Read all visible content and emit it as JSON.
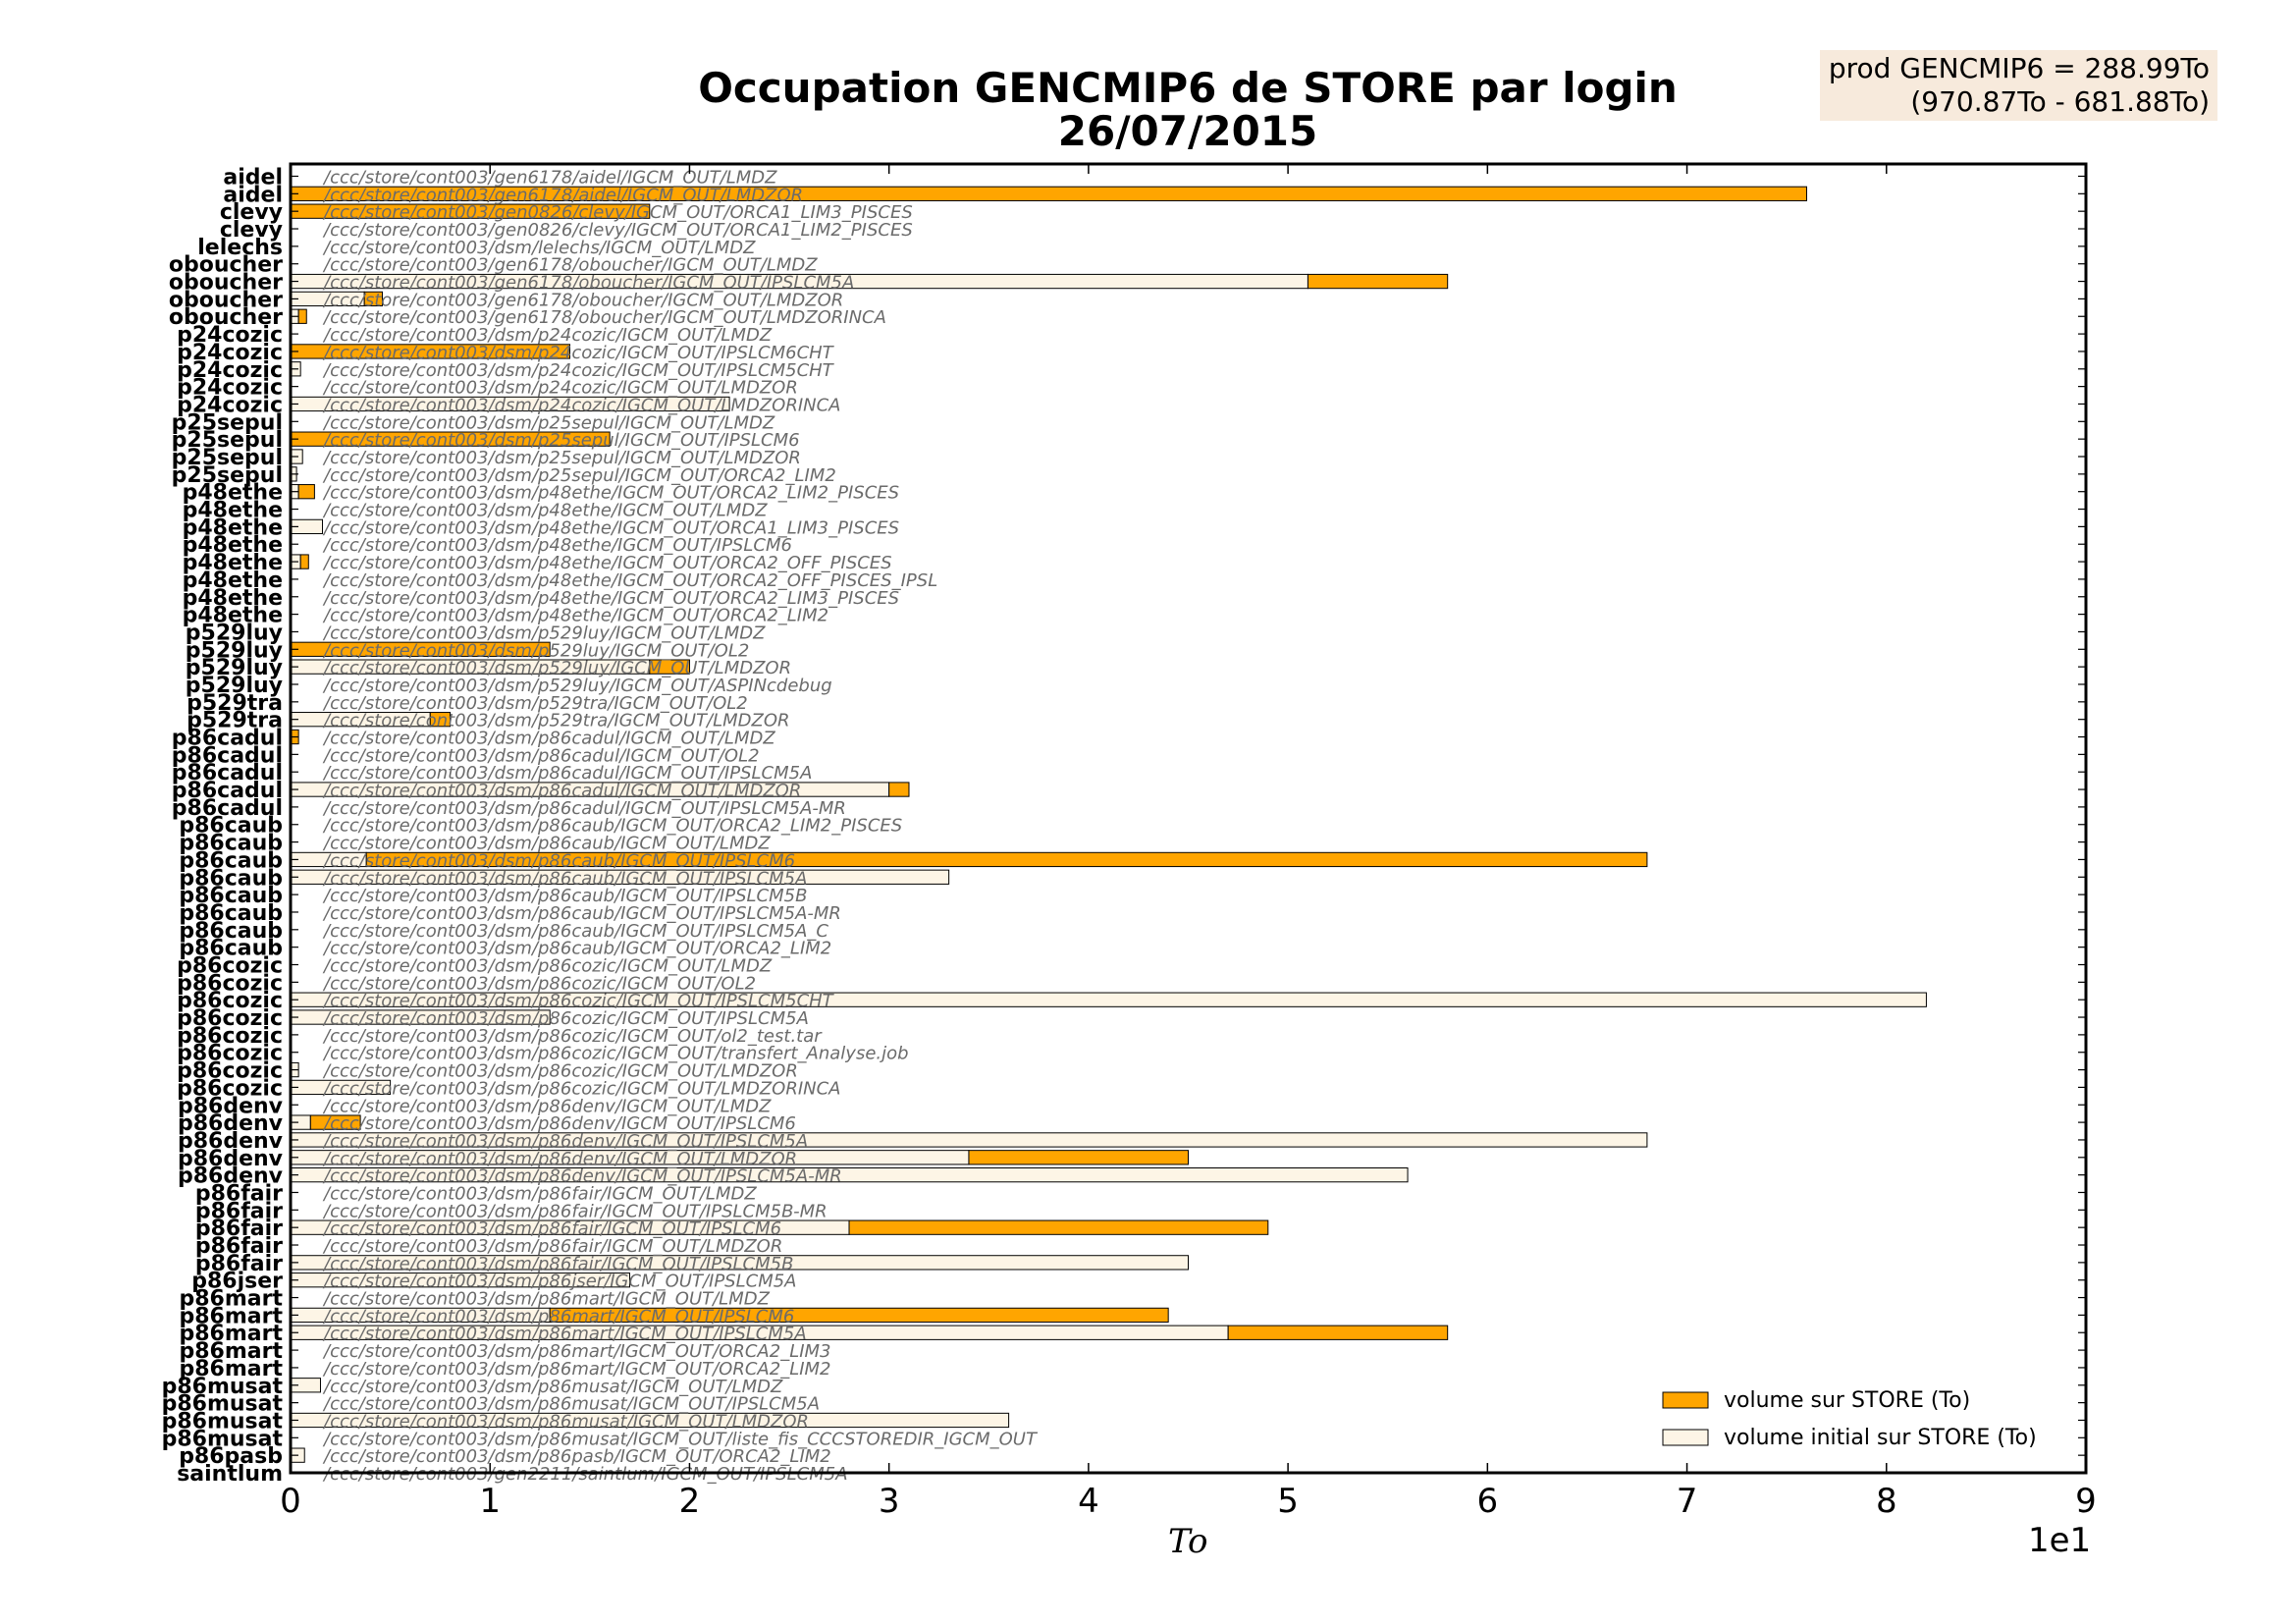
{
  "header": {
    "title_line1": "Occupation GENCMIP6 de STORE par login",
    "title_line2": "26/07/2015"
  },
  "info_box": {
    "line1": "prod GENCMIP6 = 288.99To",
    "line2": "(970.87To - 681.88To)"
  },
  "colors": {
    "volume": "#ffa500",
    "initial": "#fdf5e6",
    "path_text": "#6b6b6b"
  },
  "chart_data": {
    "type": "bar",
    "orientation": "horizontal",
    "title": "Occupation GENCMIP6 de STORE par login\n26/07/2015",
    "xlabel": "To",
    "x_multiplier": "1e1",
    "xlim": [
      0,
      90
    ],
    "xticks": [
      0,
      10,
      20,
      30,
      40,
      50,
      60,
      70,
      80,
      90
    ],
    "xtick_labels": [
      "0",
      "1",
      "2",
      "3",
      "4",
      "5",
      "6",
      "7",
      "8",
      "9"
    ],
    "legend_position": "lower-right",
    "legend": [
      {
        "key": "volume",
        "label": "volume sur STORE (To)"
      },
      {
        "key": "initial",
        "label": "volume initial sur STORE (To)"
      }
    ],
    "rows": [
      {
        "login": "aidel",
        "path": "/ccc/store/cont003/gen6178/aidel/IGCM_OUT/LMDZ",
        "initial": 0,
        "volume": 0
      },
      {
        "login": "aidel",
        "path": "/ccc/store/cont003/gen6178/aidel/IGCM_OUT/LMDZOR",
        "initial": 0,
        "volume": 76
      },
      {
        "login": "clevy",
        "path": "/ccc/store/cont003/gen0826/clevy/IGCM_OUT/ORCA1_LIM3_PISCES",
        "initial": 0,
        "volume": 18
      },
      {
        "login": "clevy",
        "path": "/ccc/store/cont003/gen0826/clevy/IGCM_OUT/ORCA1_LIM2_PISCES",
        "initial": 0,
        "volume": 0
      },
      {
        "login": "lelechs",
        "path": "/ccc/store/cont003/dsm/lelechs/IGCM_OUT/LMDZ",
        "initial": 0,
        "volume": 0
      },
      {
        "login": "oboucher",
        "path": "/ccc/store/cont003/gen6178/oboucher/IGCM_OUT/LMDZ",
        "initial": 0,
        "volume": 0
      },
      {
        "login": "oboucher",
        "path": "/ccc/store/cont003/gen6178/oboucher/IGCM_OUT/IPSLCM5A",
        "initial": 51,
        "volume": 58
      },
      {
        "login": "oboucher",
        "path": "/ccc/store/cont003/gen6178/oboucher/IGCM_OUT/LMDZOR",
        "initial": 3.7,
        "volume": 4.6
      },
      {
        "login": "oboucher",
        "path": "/ccc/store/cont003/gen6178/oboucher/IGCM_OUT/LMDZORINCA",
        "initial": 0.4,
        "volume": 0.8
      },
      {
        "login": "p24cozic",
        "path": "/ccc/store/cont003/dsm/p24cozic/IGCM_OUT/LMDZ",
        "initial": 0,
        "volume": 0
      },
      {
        "login": "p24cozic",
        "path": "/ccc/store/cont003/dsm/p24cozic/IGCM_OUT/IPSLCM6CHT",
        "initial": 0,
        "volume": 14
      },
      {
        "login": "p24cozic",
        "path": "/ccc/store/cont003/dsm/p24cozic/IGCM_OUT/IPSLCM5CHT",
        "initial": 0.5,
        "volume": 0
      },
      {
        "login": "p24cozic",
        "path": "/ccc/store/cont003/dsm/p24cozic/IGCM_OUT/LMDZOR",
        "initial": 0,
        "volume": 0
      },
      {
        "login": "p24cozic",
        "path": "/ccc/store/cont003/dsm/p24cozic/IGCM_OUT/LMDZORINCA",
        "initial": 22,
        "volume": 2
      },
      {
        "login": "p25sepul",
        "path": "/ccc/store/cont003/dsm/p25sepul/IGCM_OUT/LMDZ",
        "initial": 0,
        "volume": 0
      },
      {
        "login": "p25sepul",
        "path": "/ccc/store/cont003/dsm/p25sepul/IGCM_OUT/IPSLCM6",
        "initial": 0,
        "volume": 16
      },
      {
        "login": "p25sepul",
        "path": "/ccc/store/cont003/dsm/p25sepul/IGCM_OUT/LMDZOR",
        "initial": 0.6,
        "volume": 0
      },
      {
        "login": "p25sepul",
        "path": "/ccc/store/cont003/dsm/p25sepul/IGCM_OUT/ORCA2_LIM2",
        "initial": 0.3,
        "volume": 0
      },
      {
        "login": "p48ethe",
        "path": "/ccc/store/cont003/dsm/p48ethe/IGCM_OUT/ORCA2_LIM2_PISCES",
        "initial": 0.4,
        "volume": 1.2
      },
      {
        "login": "p48ethe",
        "path": "/ccc/store/cont003/dsm/p48ethe/IGCM_OUT/LMDZ",
        "initial": 0,
        "volume": 0
      },
      {
        "login": "p48ethe",
        "path": "/ccc/store/cont003/dsm/p48ethe/IGCM_OUT/ORCA1_LIM3_PISCES",
        "initial": 1.6,
        "volume": 0
      },
      {
        "login": "p48ethe",
        "path": "/ccc/store/cont003/dsm/p48ethe/IGCM_OUT/IPSLCM6",
        "initial": 0,
        "volume": 0
      },
      {
        "login": "p48ethe",
        "path": "/ccc/store/cont003/dsm/p48ethe/IGCM_OUT/ORCA2_OFF_PISCES",
        "initial": 0.5,
        "volume": 0.9
      },
      {
        "login": "p48ethe",
        "path": "/ccc/store/cont003/dsm/p48ethe/IGCM_OUT/ORCA2_OFF_PISCES_IPSL",
        "initial": 0,
        "volume": 0
      },
      {
        "login": "p48ethe",
        "path": "/ccc/store/cont003/dsm/p48ethe/IGCM_OUT/ORCA2_LIM3_PISCES",
        "initial": 0,
        "volume": 0
      },
      {
        "login": "p48ethe",
        "path": "/ccc/store/cont003/dsm/p48ethe/IGCM_OUT/ORCA2_LIM2",
        "initial": 0,
        "volume": 0
      },
      {
        "login": "p529luy",
        "path": "/ccc/store/cont003/dsm/p529luy/IGCM_OUT/LMDZ",
        "initial": 0,
        "volume": 0
      },
      {
        "login": "p529luy",
        "path": "/ccc/store/cont003/dsm/p529luy/IGCM_OUT/OL2",
        "initial": 0,
        "volume": 13
      },
      {
        "login": "p529luy",
        "path": "/ccc/store/cont003/dsm/p529luy/IGCM_OUT/LMDZOR",
        "initial": 18,
        "volume": 20
      },
      {
        "login": "p529luy",
        "path": "/ccc/store/cont003/dsm/p529luy/IGCM_OUT/ASPINcdebug",
        "initial": 0,
        "volume": 0
      },
      {
        "login": "p529tra",
        "path": "/ccc/store/cont003/dsm/p529tra/IGCM_OUT/OL2",
        "initial": 0,
        "volume": 0
      },
      {
        "login": "p529tra",
        "path": "/ccc/store/cont003/dsm/p529tra/IGCM_OUT/LMDZOR",
        "initial": 7,
        "volume": 8
      },
      {
        "login": "p86cadul",
        "path": "/ccc/store/cont003/dsm/p86cadul/IGCM_OUT/LMDZ",
        "initial": 0,
        "volume": 0.4
      },
      {
        "login": "p86cadul",
        "path": "/ccc/store/cont003/dsm/p86cadul/IGCM_OUT/OL2",
        "initial": 0,
        "volume": 0
      },
      {
        "login": "p86cadul",
        "path": "/ccc/store/cont003/dsm/p86cadul/IGCM_OUT/IPSLCM5A",
        "initial": 0,
        "volume": 0
      },
      {
        "login": "p86cadul",
        "path": "/ccc/store/cont003/dsm/p86cadul/IGCM_OUT/LMDZOR",
        "initial": 30,
        "volume": 31
      },
      {
        "login": "p86cadul",
        "path": "/ccc/store/cont003/dsm/p86cadul/IGCM_OUT/IPSLCM5A-MR",
        "initial": 0,
        "volume": 0
      },
      {
        "login": "p86caub",
        "path": "/ccc/store/cont003/dsm/p86caub/IGCM_OUT/ORCA2_LIM2_PISCES",
        "initial": 0,
        "volume": 0
      },
      {
        "login": "p86caub",
        "path": "/ccc/store/cont003/dsm/p86caub/IGCM_OUT/LMDZ",
        "initial": 0,
        "volume": 0
      },
      {
        "login": "p86caub",
        "path": "/ccc/store/cont003/dsm/p86caub/IGCM_OUT/IPSLCM6",
        "initial": 3.8,
        "volume": 68
      },
      {
        "login": "p86caub",
        "path": "/ccc/store/cont003/dsm/p86caub/IGCM_OUT/IPSLCM5A",
        "initial": 33,
        "volume": 0
      },
      {
        "login": "p86caub",
        "path": "/ccc/store/cont003/dsm/p86caub/IGCM_OUT/IPSLCM5B",
        "initial": 0,
        "volume": 0
      },
      {
        "login": "p86caub",
        "path": "/ccc/store/cont003/dsm/p86caub/IGCM_OUT/IPSLCM5A-MR",
        "initial": 0,
        "volume": 0
      },
      {
        "login": "p86caub",
        "path": "/ccc/store/cont003/dsm/p86caub/IGCM_OUT/IPSLCM5A_C",
        "initial": 0,
        "volume": 0
      },
      {
        "login": "p86caub",
        "path": "/ccc/store/cont003/dsm/p86caub/IGCM_OUT/ORCA2_LIM2",
        "initial": 0,
        "volume": 0
      },
      {
        "login": "p86cozic",
        "path": "/ccc/store/cont003/dsm/p86cozic/IGCM_OUT/LMDZ",
        "initial": 0,
        "volume": 0
      },
      {
        "login": "p86cozic",
        "path": "/ccc/store/cont003/dsm/p86cozic/IGCM_OUT/OL2",
        "initial": 0,
        "volume": 0
      },
      {
        "login": "p86cozic",
        "path": "/ccc/store/cont003/dsm/p86cozic/IGCM_OUT/IPSLCM5CHT",
        "initial": 82,
        "volume": 0
      },
      {
        "login": "p86cozic",
        "path": "/ccc/store/cont003/dsm/p86cozic/IGCM_OUT/IPSLCM5A",
        "initial": 13,
        "volume": 0
      },
      {
        "login": "p86cozic",
        "path": "/ccc/store/cont003/dsm/p86cozic/IGCM_OUT/ol2_test.tar",
        "initial": 0,
        "volume": 0
      },
      {
        "login": "p86cozic",
        "path": "/ccc/store/cont003/dsm/p86cozic/IGCM_OUT/transfert_Analyse.job",
        "initial": 0,
        "volume": 0
      },
      {
        "login": "p86cozic",
        "path": "/ccc/store/cont003/dsm/p86cozic/IGCM_OUT/LMDZOR",
        "initial": 0.4,
        "volume": 0
      },
      {
        "login": "p86cozic",
        "path": "/ccc/store/cont003/dsm/p86cozic/IGCM_OUT/LMDZORINCA",
        "initial": 5,
        "volume": 0
      },
      {
        "login": "p86denv",
        "path": "/ccc/store/cont003/dsm/p86denv/IGCM_OUT/LMDZ",
        "initial": 0,
        "volume": 0
      },
      {
        "login": "p86denv",
        "path": "/ccc/store/cont003/dsm/p86denv/IGCM_OUT/IPSLCM6",
        "initial": 1,
        "volume": 3.5
      },
      {
        "login": "p86denv",
        "path": "/ccc/store/cont003/dsm/p86denv/IGCM_OUT/IPSLCM5A",
        "initial": 68,
        "volume": 0
      },
      {
        "login": "p86denv",
        "path": "/ccc/store/cont003/dsm/p86denv/IGCM_OUT/LMDZOR",
        "initial": 34,
        "volume": 45
      },
      {
        "login": "p86denv",
        "path": "/ccc/store/cont003/dsm/p86denv/IGCM_OUT/IPSLCM5A-MR",
        "initial": 56,
        "volume": 0
      },
      {
        "login": "p86fair",
        "path": "/ccc/store/cont003/dsm/p86fair/IGCM_OUT/LMDZ",
        "initial": 0,
        "volume": 0
      },
      {
        "login": "p86fair",
        "path": "/ccc/store/cont003/dsm/p86fair/IGCM_OUT/IPSLCM5B-MR",
        "initial": 0,
        "volume": 0
      },
      {
        "login": "p86fair",
        "path": "/ccc/store/cont003/dsm/p86fair/IGCM_OUT/IPSLCM6",
        "initial": 28,
        "volume": 49
      },
      {
        "login": "p86fair",
        "path": "/ccc/store/cont003/dsm/p86fair/IGCM_OUT/LMDZOR",
        "initial": 0,
        "volume": 0
      },
      {
        "login": "p86fair",
        "path": "/ccc/store/cont003/dsm/p86fair/IGCM_OUT/IPSLCM5B",
        "initial": 45,
        "volume": 0
      },
      {
        "login": "p86jser",
        "path": "/ccc/store/cont003/dsm/p86jser/IGCM_OUT/IPSLCM5A",
        "initial": 17,
        "volume": 0
      },
      {
        "login": "p86mart",
        "path": "/ccc/store/cont003/dsm/p86mart/IGCM_OUT/LMDZ",
        "initial": 0,
        "volume": 0
      },
      {
        "login": "p86mart",
        "path": "/ccc/store/cont003/dsm/p86mart/IGCM_OUT/IPSLCM6",
        "initial": 13,
        "volume": 44
      },
      {
        "login": "p86mart",
        "path": "/ccc/store/cont003/dsm/p86mart/IGCM_OUT/IPSLCM5A",
        "initial": 47,
        "volume": 58
      },
      {
        "login": "p86mart",
        "path": "/ccc/store/cont003/dsm/p86mart/IGCM_OUT/ORCA2_LIM3",
        "initial": 0,
        "volume": 0
      },
      {
        "login": "p86mart",
        "path": "/ccc/store/cont003/dsm/p86mart/IGCM_OUT/ORCA2_LIM2",
        "initial": 0,
        "volume": 0
      },
      {
        "login": "p86musat",
        "path": "/ccc/store/cont003/dsm/p86musat/IGCM_OUT/LMDZ",
        "initial": 1.5,
        "volume": 0
      },
      {
        "login": "p86musat",
        "path": "/ccc/store/cont003/dsm/p86musat/IGCM_OUT/IPSLCM5A",
        "initial": 0,
        "volume": 0
      },
      {
        "login": "p86musat",
        "path": "/ccc/store/cont003/dsm/p86musat/IGCM_OUT/LMDZOR",
        "initial": 36,
        "volume": 0
      },
      {
        "login": "p86musat",
        "path": "/ccc/store/cont003/dsm/p86musat/IGCM_OUT/liste_fis_CCCSTOREDIR_IGCM_OUT",
        "initial": 0,
        "volume": 0
      },
      {
        "login": "p86pasb",
        "path": "/ccc/store/cont003/dsm/p86pasb/IGCM_OUT/ORCA2_LIM2",
        "initial": 0.7,
        "volume": 0
      },
      {
        "login": "saintlum",
        "path": "/ccc/store/cont003/gen2211/saintlum/IGCM_OUT/IPSLCM5A",
        "initial": 0,
        "volume": 0
      }
    ]
  }
}
